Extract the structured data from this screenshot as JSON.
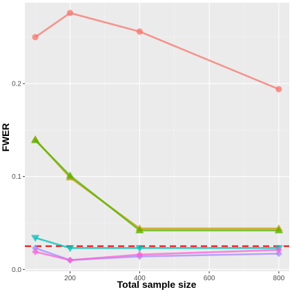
{
  "chart_data": {
    "type": "line",
    "title": "",
    "xlabel": "Total sample size",
    "ylabel": "FWER",
    "x": [
      100,
      200,
      400,
      800
    ],
    "xlim": [
      70,
      830
    ],
    "ylim": [
      -0.002,
      0.287
    ],
    "x_ticks": [
      200,
      400,
      600,
      800
    ],
    "x_tick_labels": [
      "200",
      "400",
      "600",
      "800"
    ],
    "y_ticks": [
      0.0,
      0.1,
      0.2
    ],
    "y_tick_labels": [
      "0.0",
      "0.1",
      "0.2"
    ],
    "grid": true,
    "legend": "none",
    "reference_line": {
      "y": 0.025,
      "color": "#e41a1c",
      "style": "dashed"
    },
    "series": [
      {
        "color": "#f8766d",
        "marker": "circle",
        "values": [
          0.25,
          0.276,
          0.256,
          0.194
        ]
      },
      {
        "color": "#c49a00",
        "marker": "triangle-up",
        "values": [
          0.14,
          0.099,
          0.044,
          0.044
        ]
      },
      {
        "color": "#53b400",
        "marker": "triangle-up",
        "values": [
          0.139,
          0.101,
          0.042,
          0.042
        ]
      },
      {
        "color": "#00c0b8",
        "marker": "triangle-down",
        "values": [
          0.034,
          0.023,
          0.023,
          0.023
        ]
      },
      {
        "color": "#a58aff",
        "marker": "diamond",
        "values": [
          0.023,
          0.01,
          0.014,
          0.017
        ]
      },
      {
        "color": "#fb61d7",
        "marker": "diamond",
        "values": [
          0.019,
          0.01,
          0.016,
          0.021
        ]
      }
    ]
  }
}
